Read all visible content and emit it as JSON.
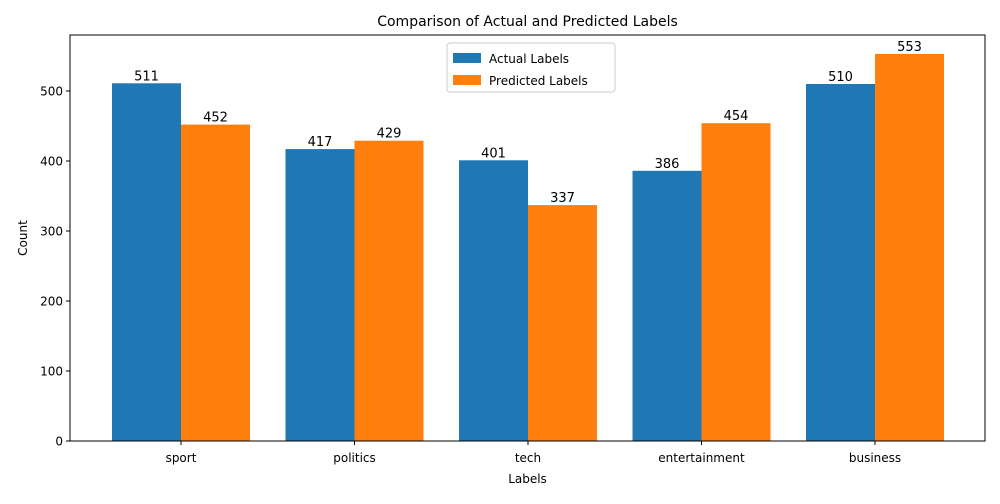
{
  "chart_data": {
    "type": "bar",
    "title": "Comparison of Actual and Predicted Labels",
    "xlabel": "Labels",
    "ylabel": "Count",
    "categories": [
      "sport",
      "politics",
      "tech",
      "entertainment",
      "business"
    ],
    "series": [
      {
        "name": "Actual Labels",
        "color": "#1f77b4",
        "values": [
          511,
          417,
          401,
          386,
          510
        ]
      },
      {
        "name": "Predicted Labels",
        "color": "#ff7f0e",
        "values": [
          452,
          429,
          337,
          454,
          553
        ]
      }
    ],
    "ylim": [
      0,
      580
    ],
    "yticks": [
      0,
      100,
      200,
      300,
      400,
      500
    ],
    "grid": false,
    "legend_position": "top-center"
  }
}
